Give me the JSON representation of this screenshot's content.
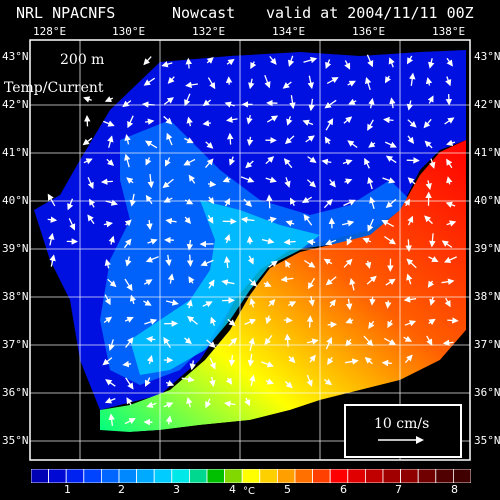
{
  "header": {
    "source": "NRL NPACNFS",
    "product": "Nowcast",
    "valid": "valid at 2004/11/11 00Z"
  },
  "axes": {
    "lon_labels": [
      "128°E",
      "130°E",
      "132°E",
      "134°E",
      "136°E",
      "138°E"
    ],
    "lat_labels": [
      "43°N",
      "42°N",
      "41°N",
      "40°N",
      "39°N",
      "38°N",
      "37°N",
      "36°N",
      "35°N"
    ]
  },
  "map": {
    "depth": "200 m",
    "field": "Temp/Current",
    "scale_label": "10 cm/s"
  },
  "colorbar": {
    "ticks": [
      "1",
      "2",
      "3",
      "4",
      "5",
      "6",
      "7",
      "8"
    ],
    "unit": "°C",
    "colors": [
      "#0000b4",
      "#0008d4",
      "#0022f0",
      "#0044ff",
      "#0066ff",
      "#0088ff",
      "#00aaff",
      "#00ccff",
      "#00e8e8",
      "#00d890",
      "#00c000",
      "#80d800",
      "#ffff00",
      "#ffd000",
      "#ffa000",
      "#ff7000",
      "#ff4000",
      "#ff0000",
      "#e00000",
      "#c00000",
      "#a00000",
      "#900000",
      "#700000",
      "#500000",
      "#400000"
    ]
  }
}
